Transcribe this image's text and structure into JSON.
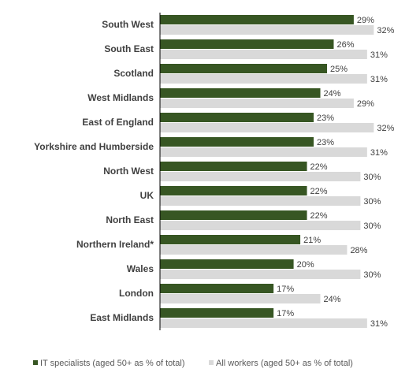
{
  "chart_data": {
    "type": "bar",
    "orientation": "horizontal",
    "categories": [
      "South West",
      "South East",
      "Scotland",
      "West Midlands",
      "East of England",
      "Yorkshire and Humberside",
      "North West",
      "UK",
      "North East",
      "Northern Ireland*",
      "Wales",
      "London",
      "East Midlands"
    ],
    "series": [
      {
        "name": "IT specialists (aged 50+ as % of total)",
        "color": "#375623",
        "values": [
          29,
          26,
          25,
          24,
          23,
          23,
          22,
          22,
          22,
          21,
          20,
          17,
          17
        ]
      },
      {
        "name": "All workers (aged 50+ as % of total)",
        "color": "#d9d9d9",
        "values": [
          32,
          31,
          31,
          29,
          32,
          31,
          30,
          30,
          30,
          28,
          30,
          24,
          31
        ]
      }
    ],
    "value_suffix": "%",
    "xlim": [
      0,
      33
    ],
    "legend_position": "bottom",
    "grid": false
  }
}
